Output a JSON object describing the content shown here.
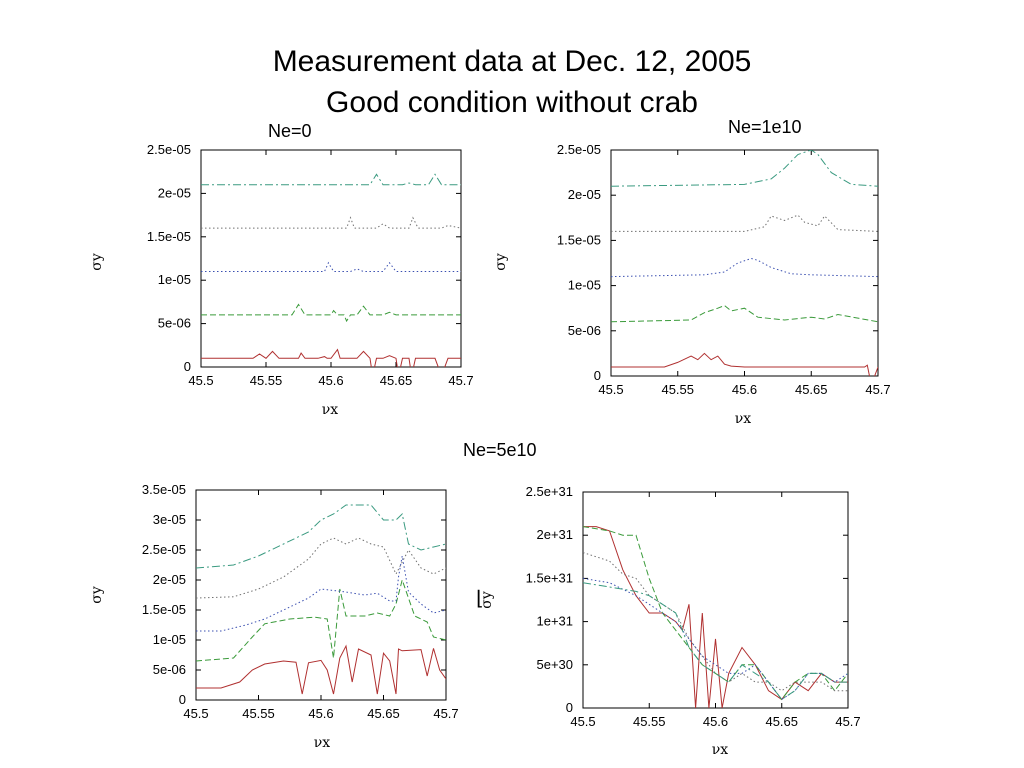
{
  "slide": {
    "title_line1": "Measurement data at Dec. 12, 2005",
    "title_line2": "Good condition without crab",
    "label_ne0": "Ne=0",
    "label_ne1e10": "Ne=1e10",
    "label_ne5e10": "Ne=5e10"
  },
  "colors": {
    "red": "#b03030",
    "green": "#3a9a3a",
    "blue": "#3a4fb0",
    "gray": "#707070",
    "teal": "#3a9a80"
  },
  "chart_data": [
    {
      "type": "line",
      "xlabel": "νx",
      "ylabel": "σy",
      "xlim": [
        45.5,
        45.7
      ],
      "ylim": [
        0,
        2.5e-05
      ],
      "xticks": [
        "45.5",
        "45.55",
        "45.6",
        "45.65",
        "45.7"
      ],
      "yticks": [
        "0",
        "5e-06",
        "1e-05",
        "1.5e-05",
        "2e-05",
        "2.5e-05"
      ],
      "ytick_values": [
        0,
        5e-06,
        1e-05,
        1.5e-05,
        2e-05,
        2.5e-05
      ],
      "series": [
        {
          "color": "red",
          "style": "solid",
          "x": [
            45.5,
            45.54,
            45.545,
            45.55,
            45.555,
            45.56,
            45.575,
            45.577,
            45.58,
            45.59,
            45.595,
            45.597,
            45.6,
            45.605,
            45.607,
            45.61,
            45.62,
            45.625,
            45.63,
            45.632,
            45.635,
            45.64,
            45.645,
            45.65,
            45.652,
            45.655,
            45.66,
            45.662,
            45.665,
            45.67,
            45.68,
            45.685,
            45.69,
            45.7
          ],
          "y": [
            1e-06,
            1e-06,
            1.5e-06,
            1e-06,
            1.8e-06,
            1e-06,
            1e-06,
            1.6e-06,
            1e-06,
            1e-06,
            1.2e-06,
            1e-06,
            1e-06,
            2e-06,
            1e-06,
            1e-06,
            1e-06,
            1.8e-06,
            1e-06,
            -1e-06,
            1e-06,
            1e-06,
            1.3e-06,
            1e-06,
            -1e-06,
            1e-06,
            1e-06,
            -1e-06,
            1e-06,
            1e-06,
            1e-06,
            -1e-06,
            1e-06,
            1e-06
          ]
        },
        {
          "color": "green",
          "style": "dashed",
          "x": [
            45.5,
            45.57,
            45.575,
            45.58,
            45.6,
            45.602,
            45.605,
            45.61,
            45.612,
            45.615,
            45.62,
            45.625,
            45.63,
            45.64,
            45.645,
            45.65,
            45.7
          ],
          "y": [
            6e-06,
            6e-06,
            7.2e-06,
            6e-06,
            6e-06,
            6.5e-06,
            6e-06,
            6e-06,
            5.3e-06,
            6e-06,
            6e-06,
            7e-06,
            6e-06,
            6e-06,
            6.3e-06,
            6e-06,
            6e-06
          ]
        },
        {
          "color": "blue",
          "style": "dotted",
          "x": [
            45.5,
            45.595,
            45.598,
            45.602,
            45.615,
            45.62,
            45.625,
            45.64,
            45.645,
            45.65,
            45.7
          ],
          "y": [
            1.1e-05,
            1.1e-05,
            1.2e-05,
            1.1e-05,
            1.1e-05,
            1.13e-05,
            1.1e-05,
            1.1e-05,
            1.2e-05,
            1.1e-05,
            1.1e-05
          ]
        },
        {
          "color": "gray",
          "style": "dotted",
          "x": [
            45.5,
            45.612,
            45.615,
            45.618,
            45.635,
            45.64,
            45.645,
            45.66,
            45.663,
            45.667,
            45.685,
            45.69,
            45.7
          ],
          "y": [
            1.6e-05,
            1.6e-05,
            1.72e-05,
            1.6e-05,
            1.6e-05,
            1.65e-05,
            1.6e-05,
            1.6e-05,
            1.72e-05,
            1.6e-05,
            1.6e-05,
            1.63e-05,
            1.6e-05
          ]
        },
        {
          "color": "teal",
          "style": "dashdot",
          "x": [
            45.5,
            45.63,
            45.635,
            45.64,
            45.655,
            45.66,
            45.665,
            45.675,
            45.68,
            45.685,
            45.7
          ],
          "y": [
            2.1e-05,
            2.1e-05,
            2.22e-05,
            2.1e-05,
            2.1e-05,
            2.12e-05,
            2.1e-05,
            2.1e-05,
            2.22e-05,
            2.1e-05,
            2.1e-05
          ]
        }
      ]
    },
    {
      "type": "line",
      "xlabel": "νx",
      "ylabel": "σy",
      "xlim": [
        45.5,
        45.7
      ],
      "ylim": [
        0,
        2.5e-05
      ],
      "xticks": [
        "45.5",
        "45.55",
        "45.6",
        "45.65",
        "45.7"
      ],
      "yticks": [
        "0",
        "5e-06",
        "1e-05",
        "1.5e-05",
        "2e-05",
        "2.5e-05"
      ],
      "ytick_values": [
        0,
        5e-06,
        1e-05,
        1.5e-05,
        2e-05,
        2.5e-05
      ],
      "series": [
        {
          "color": "red",
          "style": "solid",
          "x": [
            45.5,
            45.54,
            45.55,
            45.56,
            45.565,
            45.57,
            45.575,
            45.58,
            45.585,
            45.59,
            45.6,
            45.65,
            45.69,
            45.692,
            45.695,
            45.7
          ],
          "y": [
            1e-06,
            1e-06,
            1.5e-06,
            2.2e-06,
            1.8e-06,
            2.5e-06,
            1.8e-06,
            2.2e-06,
            1.3e-06,
            1.1e-06,
            1e-06,
            1e-06,
            1e-06,
            1.2e-06,
            -1e-06,
            1e-06
          ]
        },
        {
          "color": "green",
          "style": "dashed",
          "x": [
            45.5,
            45.56,
            45.57,
            45.58,
            45.585,
            45.59,
            45.6,
            45.61,
            45.63,
            45.65,
            45.66,
            45.67,
            45.7
          ],
          "y": [
            6e-06,
            6.2e-06,
            7e-06,
            7.5e-06,
            7.8e-06,
            7.2e-06,
            7.5e-06,
            6.5e-06,
            6.2e-06,
            6.5e-06,
            6.3e-06,
            6.8e-06,
            6e-06
          ]
        },
        {
          "color": "blue",
          "style": "dotted",
          "x": [
            45.5,
            45.57,
            45.585,
            45.595,
            45.605,
            45.61,
            45.62,
            45.635,
            45.65,
            45.7
          ],
          "y": [
            1.1e-05,
            1.12e-05,
            1.15e-05,
            1.25e-05,
            1.3e-05,
            1.28e-05,
            1.2e-05,
            1.13e-05,
            1.12e-05,
            1.1e-05
          ]
        },
        {
          "color": "gray",
          "style": "dotted",
          "x": [
            45.5,
            45.6,
            45.615,
            45.62,
            45.63,
            45.64,
            45.645,
            45.655,
            45.66,
            45.67,
            45.7
          ],
          "y": [
            1.6e-05,
            1.6e-05,
            1.65e-05,
            1.77e-05,
            1.72e-05,
            1.78e-05,
            1.7e-05,
            1.66e-05,
            1.77e-05,
            1.62e-05,
            1.6e-05
          ]
        },
        {
          "color": "teal",
          "style": "dashdot",
          "x": [
            45.5,
            45.6,
            45.62,
            45.63,
            45.64,
            45.65,
            45.655,
            45.665,
            45.68,
            45.7
          ],
          "y": [
            2.1e-05,
            2.12e-05,
            2.18e-05,
            2.3e-05,
            2.45e-05,
            2.5e-05,
            2.45e-05,
            2.25e-05,
            2.12e-05,
            2.1e-05
          ]
        }
      ]
    },
    {
      "type": "line",
      "xlabel": "νx",
      "ylabel": "σy",
      "xlim": [
        45.5,
        45.7
      ],
      "ylim": [
        0,
        3.5e-05
      ],
      "xticks": [
        "45.5",
        "45.55",
        "45.6",
        "45.65",
        "45.7"
      ],
      "yticks": [
        "0",
        "5e-06",
        "1e-05",
        "1.5e-05",
        "2e-05",
        "2.5e-05",
        "3e-05",
        "3.5e-05"
      ],
      "ytick_values": [
        0,
        5e-06,
        1e-05,
        1.5e-05,
        2e-05,
        2.5e-05,
        3e-05,
        3.5e-05
      ],
      "series": [
        {
          "color": "red",
          "style": "solid",
          "x": [
            45.5,
            45.52,
            45.535,
            45.545,
            45.555,
            45.57,
            45.58,
            45.585,
            45.59,
            45.6,
            45.605,
            45.61,
            45.615,
            45.62,
            45.625,
            45.63,
            45.64,
            45.645,
            45.65,
            45.655,
            45.66,
            45.662,
            45.665,
            45.68,
            45.685,
            45.69,
            45.695,
            45.7
          ],
          "y": [
            2e-06,
            2e-06,
            3e-06,
            5e-06,
            6e-06,
            6.5e-06,
            6.3e-06,
            1e-06,
            6.2e-06,
            6.6e-06,
            5e-06,
            1e-06,
            7e-06,
            9e-06,
            3e-06,
            8.5e-06,
            7.5e-06,
            1e-06,
            7.8e-06,
            6.5e-06,
            1e-06,
            8.5e-06,
            8.2e-06,
            8.4e-06,
            4e-06,
            8.6e-06,
            5e-06,
            3.5e-06
          ]
        },
        {
          "color": "green",
          "style": "dashed",
          "x": [
            45.5,
            45.53,
            45.545,
            45.555,
            45.575,
            45.595,
            45.605,
            45.61,
            45.615,
            45.62,
            45.635,
            45.645,
            45.655,
            45.66,
            45.665,
            45.675,
            45.685,
            45.69,
            45.7
          ],
          "y": [
            6.5e-06,
            7e-06,
            1.05e-05,
            1.27e-05,
            1.35e-05,
            1.38e-05,
            1.35e-05,
            7e-06,
            1.85e-05,
            1.4e-05,
            1.4e-05,
            1.45e-05,
            1.4e-05,
            1.6e-05,
            2e-05,
            1.4e-05,
            1.3e-05,
            1.05e-05,
            1e-05
          ]
        },
        {
          "color": "blue",
          "style": "dotted",
          "x": [
            45.5,
            45.52,
            45.54,
            45.555,
            45.575,
            45.59,
            45.6,
            45.62,
            45.635,
            45.645,
            45.655,
            45.66,
            45.662,
            45.665,
            45.67,
            45.68,
            45.69,
            45.7
          ],
          "y": [
            1.15e-05,
            1.15e-05,
            1.25e-05,
            1.35e-05,
            1.55e-05,
            1.7e-05,
            1.85e-05,
            1.8e-05,
            1.75e-05,
            1.78e-05,
            1.65e-05,
            1.65e-05,
            2.05e-05,
            2.4e-05,
            1.8e-05,
            1.6e-05,
            1.45e-05,
            1.5e-05
          ]
        },
        {
          "color": "gray",
          "style": "dotted",
          "x": [
            45.5,
            45.53,
            45.55,
            45.57,
            45.59,
            45.6,
            45.61,
            45.62,
            45.63,
            45.64,
            45.65,
            45.66,
            45.67,
            45.68,
            45.69,
            45.7
          ],
          "y": [
            1.7e-05,
            1.72e-05,
            1.85e-05,
            2.05e-05,
            2.35e-05,
            2.6e-05,
            2.7e-05,
            2.6e-05,
            2.7e-05,
            2.6e-05,
            2.55e-05,
            2.1e-05,
            2.5e-05,
            2.2e-05,
            2.1e-05,
            2.2e-05
          ]
        },
        {
          "color": "teal",
          "style": "dashdot",
          "x": [
            45.5,
            45.53,
            45.55,
            45.57,
            45.59,
            45.6,
            45.61,
            45.62,
            45.63,
            45.64,
            45.65,
            45.66,
            45.665,
            45.67,
            45.68,
            45.69,
            45.7
          ],
          "y": [
            2.2e-05,
            2.25e-05,
            2.4e-05,
            2.6e-05,
            2.8e-05,
            3e-05,
            3.1e-05,
            3.25e-05,
            3.25e-05,
            3.25e-05,
            3e-05,
            3e-05,
            3.1e-05,
            2.6e-05,
            2.5e-05,
            2.55e-05,
            2.6e-05
          ]
        }
      ]
    },
    {
      "type": "line",
      "xlabel": "νx",
      "ylabel": "σy",
      "xlim": [
        45.5,
        45.7
      ],
      "ylim": [
        0,
        2.5e+31
      ],
      "xticks": [
        "45.5",
        "45.55",
        "45.6",
        "45.65",
        "45.7"
      ],
      "yticks": [
        "0",
        "5e+30",
        "1e+31",
        "1.5e+31",
        "2e+31",
        "2.5e+31"
      ],
      "ytick_values": [
        0,
        5e+30,
        1e+31,
        1.5e+31,
        2e+31,
        2.5e+31
      ],
      "series": [
        {
          "color": "red",
          "style": "solid",
          "x": [
            45.5,
            45.51,
            45.52,
            45.53,
            45.54,
            45.55,
            45.56,
            45.57,
            45.575,
            45.58,
            45.585,
            45.59,
            45.595,
            45.6,
            45.605,
            45.61,
            45.62,
            45.63,
            45.64,
            45.65,
            45.66,
            45.67,
            45.68,
            45.69,
            45.7
          ],
          "y": [
            2.1e+31,
            2.1e+31,
            2.05e+31,
            1.6e+31,
            1.3e+31,
            1.1e+31,
            1.1e+31,
            1e+31,
            9e+30,
            1.2e+31,
            0,
            1.1e+31,
            0,
            8e+30,
            0,
            4e+30,
            7e+30,
            5e+30,
            2e+30,
            1e+30,
            3e+30,
            2e+30,
            4e+30,
            3e+30,
            3e+30
          ]
        },
        {
          "color": "green",
          "style": "dashed",
          "x": [
            45.5,
            45.52,
            45.53,
            45.54,
            45.55,
            45.56,
            45.57,
            45.58,
            45.59,
            45.6,
            45.61,
            45.62,
            45.63,
            45.64,
            45.65,
            45.66,
            45.67,
            45.68,
            45.69,
            45.7
          ],
          "y": [
            2.1e+31,
            2.05e+31,
            2e+31,
            2e+31,
            1.5e+31,
            1.1e+31,
            9e+30,
            7e+30,
            5e+30,
            4e+30,
            3e+30,
            5e+30,
            5e+30,
            3e+30,
            1e+30,
            3e+30,
            4e+30,
            4e+30,
            2e+30,
            4e+30
          ]
        },
        {
          "color": "blue",
          "style": "dotted",
          "x": [
            45.5,
            45.52,
            45.54,
            45.55,
            45.56,
            45.57,
            45.58,
            45.59,
            45.6,
            45.61,
            45.62,
            45.63,
            45.64,
            45.65,
            45.66,
            45.67,
            45.68,
            45.69,
            45.7
          ],
          "y": [
            1.5e+31,
            1.45e+31,
            1.3e+31,
            1.2e+31,
            1.1e+31,
            1e+31,
            8e+30,
            6e+30,
            5e+30,
            4e+30,
            4e+30,
            5e+30,
            3e+30,
            1e+30,
            2e+30,
            4e+30,
            4e+30,
            3e+30,
            4e+30
          ]
        },
        {
          "color": "gray",
          "style": "dotted",
          "x": [
            45.5,
            45.51,
            45.52,
            45.53,
            45.54,
            45.55,
            45.56,
            45.57,
            45.58,
            45.59,
            45.6,
            45.61,
            45.62,
            45.63,
            45.64,
            45.65,
            45.66,
            45.67,
            45.68,
            45.69,
            45.7
          ],
          "y": [
            1.8e+31,
            1.75e+31,
            1.7e+31,
            1.55e+31,
            1.5e+31,
            1.3e+31,
            1.2e+31,
            1.1e+31,
            8e+30,
            6e+30,
            4e+30,
            3e+30,
            4e+30,
            3e+30,
            3e+30,
            2e+30,
            3e+30,
            3e+30,
            3e+30,
            2e+30,
            2e+30
          ]
        },
        {
          "color": "teal",
          "style": "dashdot",
          "x": [
            45.5,
            45.52,
            45.54,
            45.55,
            45.56,
            45.57,
            45.58,
            45.59,
            45.6,
            45.61,
            45.62,
            45.63,
            45.64,
            45.65,
            45.66,
            45.67,
            45.68,
            45.69,
            45.7
          ],
          "y": [
            1.45e+31,
            1.4e+31,
            1.35e+31,
            1.3e+31,
            1.2e+31,
            1.1e+31,
            7e+30,
            5e+30,
            4e+30,
            3e+30,
            5e+30,
            4e+30,
            3e+30,
            1e+30,
            2e+30,
            4e+30,
            4e+30,
            3e+30,
            3e+30
          ]
        }
      ]
    }
  ]
}
